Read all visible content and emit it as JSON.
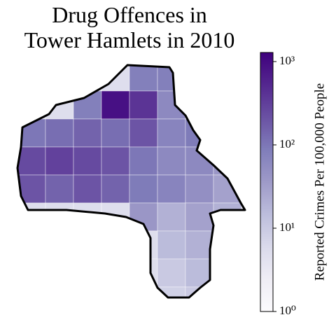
{
  "chart_data": {
    "type": "choropleth",
    "title": [
      "Drug Offences in",
      "Tower Hamlets in 2010"
    ],
    "colorbar": {
      "label": "Reported Crimes Per 100,000 People",
      "log": true,
      "colormap": "Purples",
      "lim": [
        1,
        1285
      ],
      "ticks": [
        {
          "value": 1,
          "label": "10⁰"
        },
        {
          "value": 10,
          "label": "10¹"
        },
        {
          "value": 100,
          "label": "10²"
        },
        {
          "value": 1000,
          "label": "10³"
        }
      ]
    },
    "values": [
      [
        5,
        5,
        5,
        5,
        80,
        80,
        5,
        5,
        5
      ],
      [
        5,
        5,
        80,
        900,
        400,
        60,
        5,
        5,
        5
      ],
      [
        100,
        120,
        150,
        120,
        200,
        70,
        90,
        30,
        5
      ],
      [
        250,
        300,
        250,
        200,
        100,
        60,
        60,
        40,
        5
      ],
      [
        200,
        150,
        200,
        150,
        90,
        70,
        50,
        30,
        20
      ],
      [
        5,
        5,
        5,
        5,
        40,
        20,
        30,
        20,
        5
      ],
      [
        5,
        5,
        5,
        5,
        5,
        15,
        20,
        5,
        5
      ],
      [
        5,
        5,
        5,
        5,
        5,
        10,
        15,
        5,
        5
      ],
      [
        5,
        5,
        5,
        5,
        5,
        8,
        10,
        5,
        5
      ]
    ]
  }
}
